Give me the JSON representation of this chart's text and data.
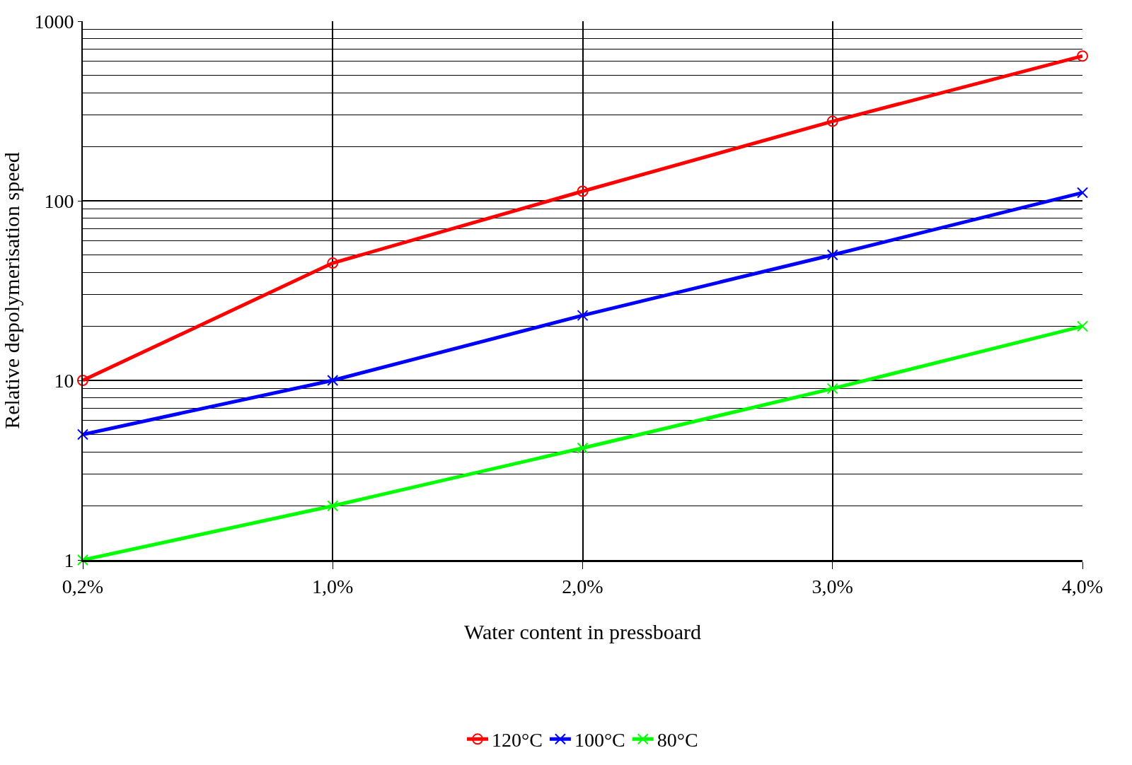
{
  "chart_data": {
    "type": "line",
    "xlabel": "Water content in pressboard",
    "ylabel": "Relative depolymerisation speed",
    "categories": [
      "0,2%",
      "1,0%",
      "2,0%",
      "3,0%",
      "4,0%"
    ],
    "series": [
      {
        "name": "120°C",
        "color": "#ff0000",
        "marker": "circle",
        "values": [
          10,
          45,
          113,
          277,
          640
        ]
      },
      {
        "name": "100°C",
        "color": "#0000ff",
        "marker": "cross",
        "values": [
          5,
          10,
          23,
          50,
          111
        ]
      },
      {
        "name": "80°C",
        "color": "#00ff00",
        "marker": "cross",
        "values": [
          1,
          2,
          4.2,
          9,
          20
        ]
      }
    ],
    "log": true,
    "ylim": [
      1,
      1000
    ],
    "yticks": [
      1,
      10,
      100,
      1000
    ],
    "grid": true,
    "legend": "bottom",
    "line_style": "solid"
  }
}
